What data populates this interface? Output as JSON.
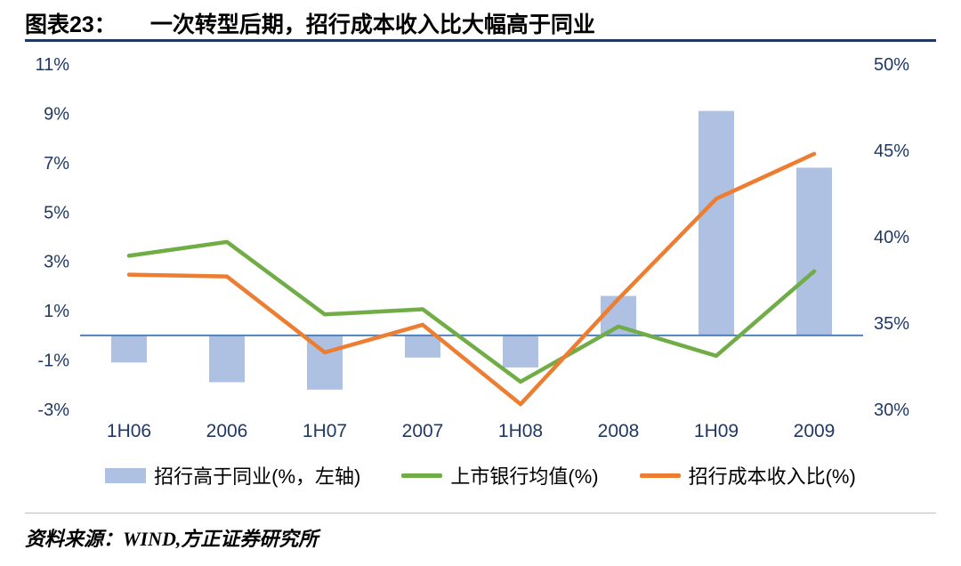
{
  "header": {
    "figure_label": "图表23：",
    "title": "一次转型后期，招行成本收入比大幅高于同业"
  },
  "chart_data": {
    "type": "combo",
    "categories": [
      "1H06",
      "2006",
      "1H07",
      "2007",
      "1H08",
      "2008",
      "1H09",
      "2009"
    ],
    "series": [
      {
        "name": "招行高于同业(%，左轴)",
        "type": "bar",
        "axis": "left",
        "color": "#aec1e2",
        "values": [
          -1.1,
          -1.9,
          -2.2,
          -0.9,
          -1.3,
          1.6,
          9.1,
          6.8
        ]
      },
      {
        "name": "上市银行均值(%)",
        "type": "line",
        "axis": "right",
        "color": "#70ad47",
        "values": [
          38.9,
          39.7,
          35.5,
          35.8,
          31.6,
          34.8,
          33.1,
          38.0
        ]
      },
      {
        "name": "招行成本收入比(%)",
        "type": "line",
        "axis": "right",
        "color": "#ed7d31",
        "values": [
          37.8,
          37.7,
          33.3,
          34.9,
          30.3,
          36.4,
          42.2,
          44.8
        ]
      }
    ],
    "left_axis": {
      "min": -3,
      "max": 11,
      "ticks": [
        11,
        9,
        7,
        5,
        3,
        1,
        -1,
        -3
      ],
      "suffix": "%"
    },
    "right_axis": {
      "min": 30,
      "max": 50,
      "ticks": [
        50,
        45,
        40,
        35,
        30
      ],
      "suffix": "%"
    },
    "zero_line_color": "#4f81bd",
    "axis_label_color": "#1f3864",
    "grid": false,
    "legend_position": "bottom"
  },
  "footer": {
    "source": "资料来源：WIND,方正证券研究所"
  }
}
